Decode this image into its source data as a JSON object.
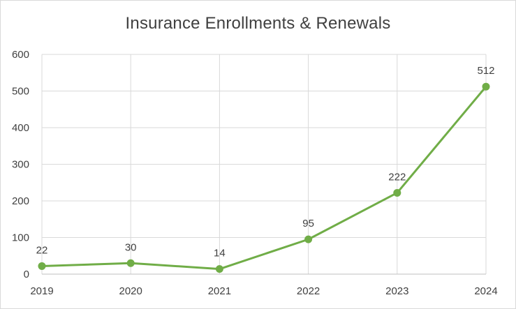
{
  "chart_data": {
    "type": "line",
    "title": "Insurance Enrollments & Renewals",
    "xlabel": "",
    "ylabel": "",
    "categories": [
      "2019",
      "2020",
      "2021",
      "2022",
      "2023",
      "2024"
    ],
    "series": [
      {
        "values": [
          22,
          30,
          14,
          95,
          222,
          512
        ],
        "color": "#70ad47"
      }
    ],
    "ylim": [
      0,
      600
    ],
    "yticks": [
      "0",
      "100",
      "200",
      "300",
      "400",
      "500",
      "600"
    ],
    "data_labels": [
      "22",
      "30",
      "14",
      "95",
      "222",
      "512"
    ],
    "grid": true,
    "legend": "none"
  }
}
